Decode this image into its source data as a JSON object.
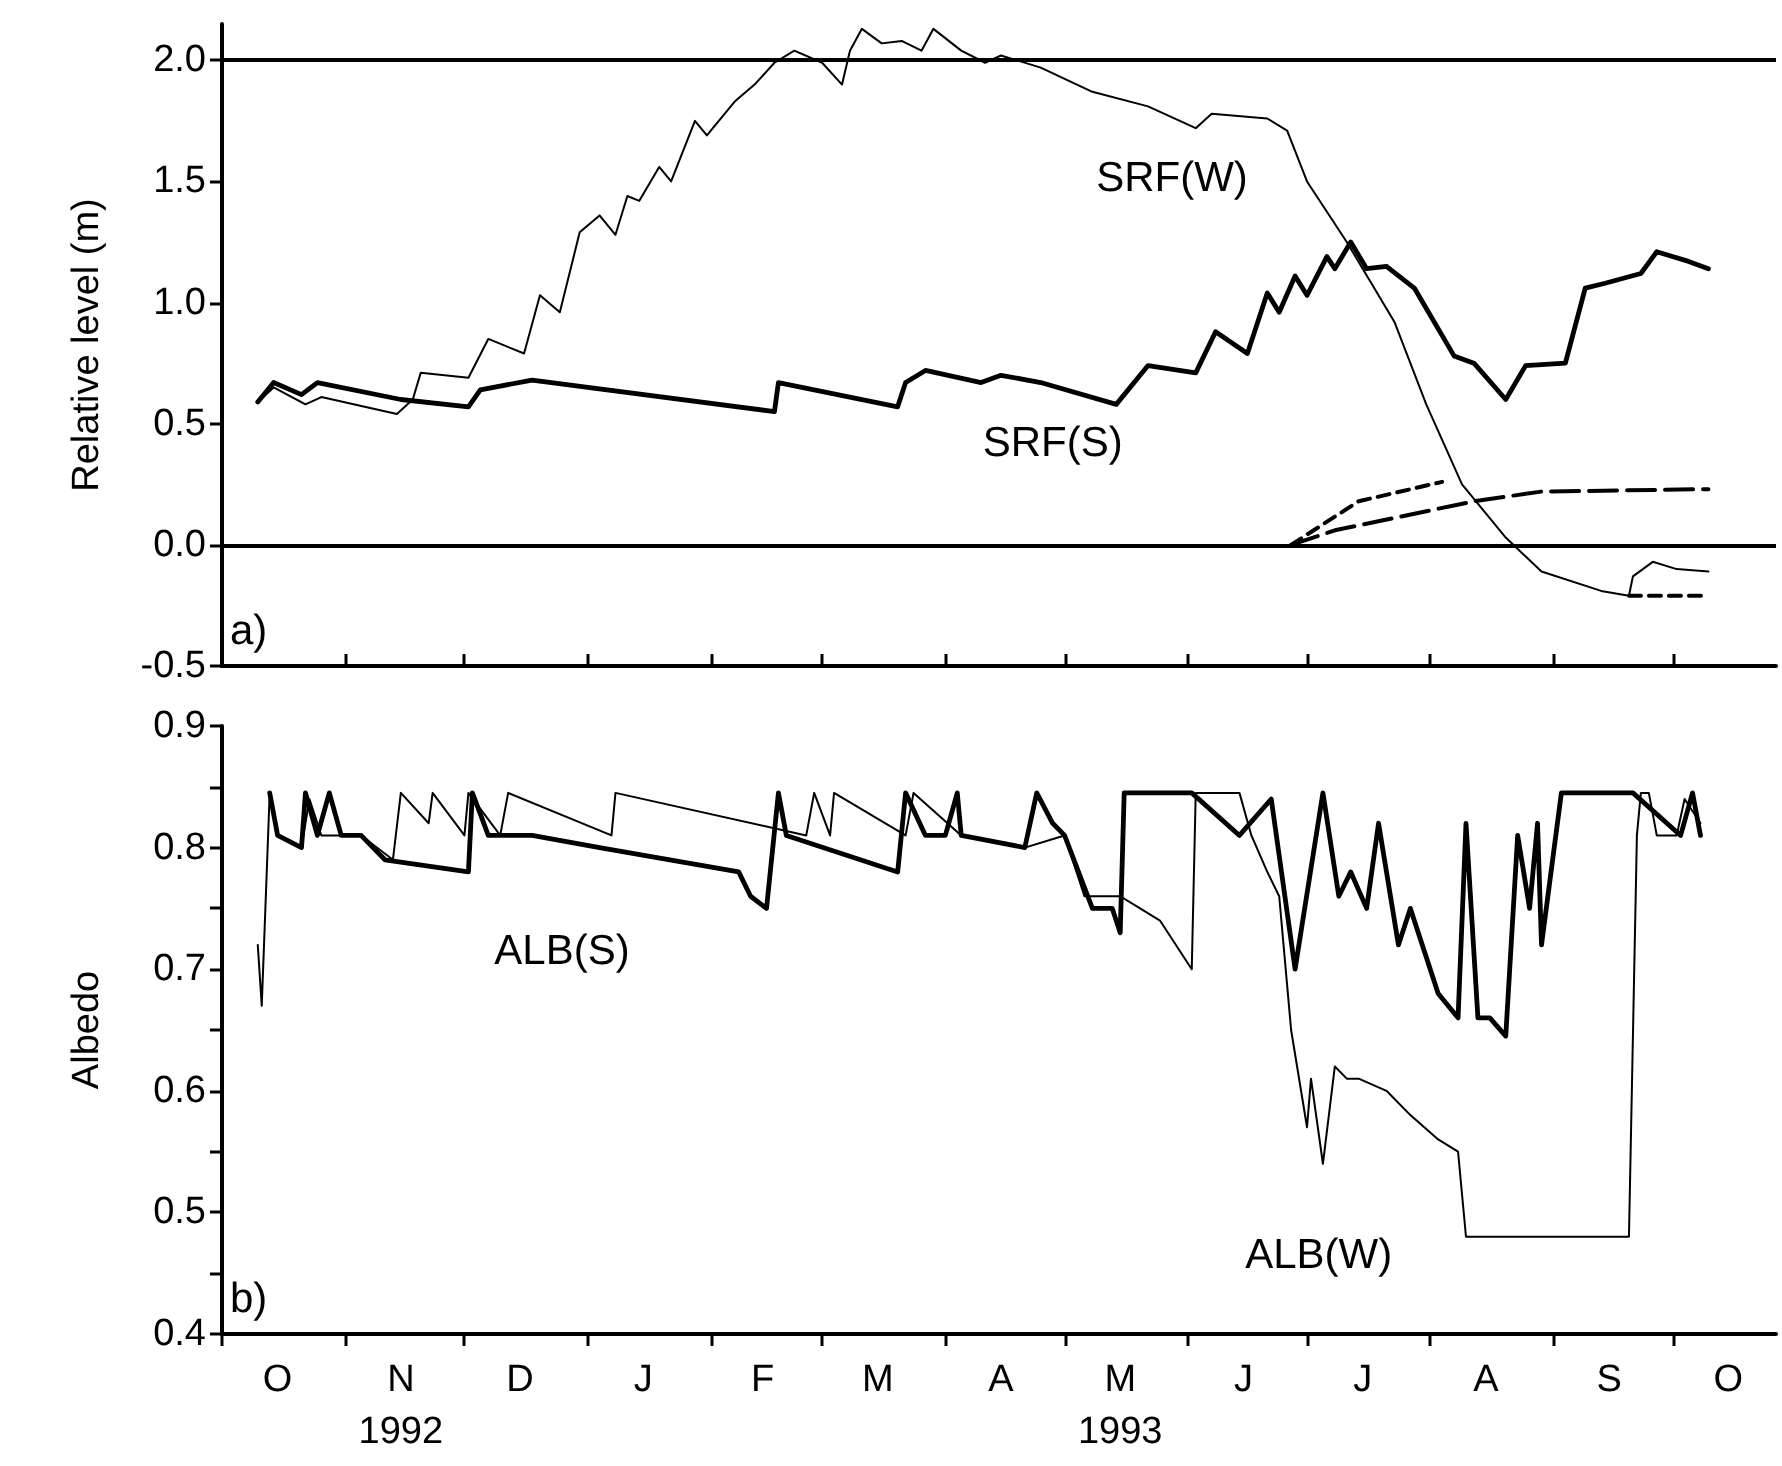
{
  "chart_data": [
    {
      "type": "line",
      "ylabel": "Relative level (m)",
      "xlim": [
        "1992-10-01",
        "1993-10-27"
      ],
      "ylim": [
        -0.5,
        2.15
      ],
      "yticks": [
        {
          "value": -0.5,
          "label": "-0.5"
        },
        {
          "value": 0,
          "label": "0.0"
        },
        {
          "value": 0.5,
          "label": "0.5"
        },
        {
          "value": 1,
          "label": "1.0"
        },
        {
          "value": 1.5,
          "label": "1.5"
        },
        {
          "value": 2,
          "label": "2.0"
        }
      ],
      "xticks": [
        {
          "value": "1992-10-01",
          "label": null
        },
        {
          "value": "1992-11-01",
          "label": null
        },
        {
          "value": "1992-12-01",
          "label": null
        },
        {
          "value": "1993-01-01",
          "label": null
        },
        {
          "value": "1993-02-01",
          "label": null
        },
        {
          "value": "1993-03-01",
          "label": null
        },
        {
          "value": "1993-04-01",
          "label": null
        },
        {
          "value": "1993-05-01",
          "label": null
        },
        {
          "value": "1993-06-01",
          "label": null
        },
        {
          "value": "1993-07-01",
          "label": null
        },
        {
          "value": "1993-08-01",
          "label": null
        },
        {
          "value": "1993-09-01",
          "label": null
        },
        {
          "value": "1993-10-01",
          "label": null
        }
      ],
      "tick_labels": "y",
      "grid": false,
      "ref_lines": [
        {
          "axis": "y",
          "value": 2,
          "color": "#000000"
        },
        {
          "axis": "y",
          "value": 0,
          "color": "#000000"
        }
      ],
      "annotations": [
        "a)"
      ],
      "series": [
        {
          "name": "SRF(W)",
          "color": "#000000",
          "line_style": "solid",
          "x": [
            "1992-10-10",
            "1992-10-14",
            "1992-10-22",
            "1992-10-26",
            "1992-11-14",
            "1992-11-18",
            "1992-11-20",
            "1992-12-02",
            "1992-12-07",
            "1992-12-16",
            "1992-12-20",
            "1992-12-25",
            "1992-12-30",
            "1993-01-04",
            "1993-01-08",
            "1993-01-11",
            "1993-01-14",
            "1993-01-19",
            "1993-01-22",
            "1993-01-28",
            "1993-01-31",
            "1993-02-07",
            "1993-02-12",
            "1993-02-17",
            "1993-02-22",
            "1993-03-01",
            "1993-03-06",
            "1993-03-08",
            "1993-03-11",
            "1993-03-16",
            "1993-03-21",
            "1993-03-26",
            "1993-03-29",
            "1993-04-05",
            "1993-04-11",
            "1993-04-15",
            "1993-04-25",
            "1993-05-08",
            "1993-05-22",
            "1993-06-03",
            "1993-06-07",
            "1993-06-21",
            "1993-06-26",
            "1993-07-01",
            "1993-07-11",
            "1993-07-23",
            "1993-07-31",
            "1993-08-09",
            "1993-08-20",
            "1993-08-29",
            "1993-09-13",
            "1993-09-20",
            "1993-09-21",
            "1993-09-26",
            "1993-10-02",
            "1993-10-10"
          ],
          "values": [
            0.59,
            0.65,
            0.58,
            0.61,
            0.54,
            0.6,
            0.71,
            0.69,
            0.85,
            0.79,
            1.03,
            0.96,
            1.29,
            1.36,
            1.28,
            1.44,
            1.42,
            1.56,
            1.5,
            1.75,
            1.69,
            1.83,
            1.9,
            1.99,
            2.04,
            1.99,
            1.9,
            2.04,
            2.13,
            2.07,
            2.08,
            2.04,
            2.13,
            2.04,
            1.99,
            2.02,
            1.97,
            1.87,
            1.81,
            1.72,
            1.78,
            1.76,
            1.71,
            1.5,
            1.25,
            0.92,
            0.58,
            0.25,
            0.03,
            -0.11,
            -0.19,
            -0.21,
            -0.13,
            -0.07,
            -0.1,
            -0.11
          ]
        },
        {
          "name": "SRF(S)",
          "color": "#000000",
          "line_style": "solid",
          "x": [
            "1992-10-10",
            "1992-10-14",
            "1992-10-21",
            "1992-10-25",
            "1992-11-15",
            "1992-12-02",
            "1992-12-05",
            "1992-12-18",
            "1993-02-17",
            "1993-02-18",
            "1993-03-20",
            "1993-03-22",
            "1993-03-27",
            "1993-04-10",
            "1993-04-15",
            "1993-04-25",
            "1993-05-14",
            "1993-05-22",
            "1993-06-03",
            "1993-06-08",
            "1993-06-16",
            "1993-06-21",
            "1993-06-24",
            "1993-06-28",
            "1993-07-01",
            "1993-07-06",
            "1993-07-08",
            "1993-07-12",
            "1993-07-16",
            "1993-07-21",
            "1993-07-28",
            "1993-08-07",
            "1993-08-12",
            "1993-08-20",
            "1993-08-25",
            "1993-09-04",
            "1993-09-09",
            "1993-09-14",
            "1993-09-23",
            "1993-09-27",
            "1993-10-05",
            "1993-10-10"
          ],
          "values": [
            0.59,
            0.67,
            0.62,
            0.67,
            0.6,
            0.57,
            0.64,
            0.68,
            0.55,
            0.67,
            0.57,
            0.67,
            0.72,
            0.67,
            0.7,
            0.67,
            0.58,
            0.74,
            0.71,
            0.88,
            0.79,
            1.04,
            0.96,
            1.11,
            1.03,
            1.19,
            1.14,
            1.25,
            1.14,
            1.15,
            1.06,
            0.78,
            0.75,
            0.6,
            0.74,
            0.75,
            1.06,
            1.08,
            1.12,
            1.21,
            1.17,
            1.14
          ]
        },
        {
          "color": "#000000",
          "line_style": "dashed",
          "x": [
            "1993-06-27",
            "1993-07-14",
            "1993-08-04",
            "1993-08-05",
            "1993-09-20",
            "1993-10-10"
          ],
          "values": [
            0.0,
            0.18,
            0.26,
            null,
            -0.21,
            -0.21
          ]
        },
        {
          "color": "#000000",
          "line_style": "dashed",
          "x": [
            "1993-06-27",
            "1993-07-08",
            "1993-08-12",
            "1993-08-29",
            "1993-10-10"
          ],
          "values": [
            0.0,
            0.06,
            0.18,
            0.22,
            0.23
          ]
        }
      ]
    },
    {
      "type": "line",
      "ylabel": "Albedo",
      "xlim": [
        "1992-10-01",
        "1993-10-27"
      ],
      "ylim": [
        0.4,
        0.9
      ],
      "yticks": [
        0.4,
        {
          "value": 0.45,
          "label": null
        },
        0.5,
        {
          "value": 0.55,
          "label": null
        },
        0.6,
        {
          "value": 0.65,
          "label": null
        },
        0.7,
        {
          "value": 0.75,
          "label": null
        },
        0.8,
        {
          "value": 0.85,
          "label": null
        },
        0.9
      ],
      "xticks": [
        {
          "value": "1992-10-01",
          "label": null
        },
        {
          "value": "1992-10-15",
          "label": "O"
        },
        {
          "value": "1992-11-01",
          "label": null
        },
        {
          "value": "1992-11-15",
          "label": "N\n1992"
        },
        {
          "value": "1992-12-01",
          "label": null
        },
        {
          "value": "1992-12-15",
          "label": "D"
        },
        {
          "value": "1993-01-01",
          "label": null
        },
        {
          "value": "1993-01-15",
          "label": "J"
        },
        {
          "value": "1993-02-01",
          "label": null
        },
        {
          "value": "1993-02-14",
          "label": "F"
        },
        {
          "value": "1993-03-01",
          "label": null
        },
        {
          "value": "1993-03-15",
          "label": "M"
        },
        {
          "value": "1993-04-01",
          "label": null
        },
        {
          "value": "1993-04-15",
          "label": "A"
        },
        {
          "value": "1993-05-01",
          "label": null
        },
        {
          "value": "1993-05-15",
          "label": "M\n1993"
        },
        {
          "value": "1993-06-01",
          "label": null
        },
        {
          "value": "1993-06-15",
          "label": "J"
        },
        {
          "value": "1993-07-01",
          "label": null
        },
        {
          "value": "1993-07-15",
          "label": "J"
        },
        {
          "value": "1993-08-01",
          "label": null
        },
        {
          "value": "1993-08-15",
          "label": "A"
        },
        {
          "value": "1993-09-01",
          "label": null
        },
        {
          "value": "1993-09-15",
          "label": "S"
        },
        {
          "value": "1993-10-01",
          "label": null
        },
        {
          "value": "1993-10-15",
          "label": "O"
        }
      ],
      "grid": false,
      "annotations": [
        "b)"
      ],
      "series": [
        {
          "name": "ALB(W)",
          "color": "#000000",
          "line_style": "solid",
          "x": [
            "1992-10-10",
            "1992-10-11",
            "1992-10-13",
            "1992-10-15",
            "1992-10-21",
            "1992-10-23",
            "1992-10-26",
            "1992-11-05",
            "1992-11-13",
            "1992-11-15",
            "1992-11-22",
            "1992-11-23",
            "1992-12-01",
            "1992-12-02",
            "1992-12-10",
            "1992-12-12",
            "1993-01-07",
            "1993-01-08",
            "1993-02-25",
            "1993-02-27",
            "1993-03-03",
            "1993-03-04",
            "1993-03-22",
            "1993-03-24",
            "1993-04-05",
            "1993-04-21",
            "1993-05-01",
            "1993-05-06",
            "1993-05-15",
            "1993-05-20",
            "1993-05-25",
            "1993-06-02",
            "1993-06-03",
            "1993-06-14",
            "1993-06-17",
            "1993-06-21",
            "1993-06-24",
            "1993-06-27",
            "1993-07-01",
            "1993-07-02",
            "1993-07-05",
            "1993-07-08",
            "1993-07-11",
            "1993-07-14",
            "1993-07-21",
            "1993-07-27",
            "1993-08-03",
            "1993-08-08",
            "1993-08-10",
            "1993-09-20",
            "1993-09-22",
            "1993-09-23",
            "1993-09-25",
            "1993-09-27",
            "1993-10-02",
            "1993-10-04",
            "1993-10-08"
          ],
          "values": [
            0.72,
            0.67,
            0.845,
            0.81,
            0.8,
            0.84,
            0.81,
            0.81,
            0.79,
            0.845,
            0.82,
            0.845,
            0.81,
            0.845,
            0.81,
            0.845,
            0.81,
            0.845,
            0.81,
            0.845,
            0.81,
            0.845,
            0.81,
            0.845,
            0.81,
            0.8,
            0.81,
            0.76,
            0.76,
            0.75,
            0.74,
            0.7,
            0.845,
            0.845,
            0.81,
            0.78,
            0.76,
            0.65,
            0.57,
            0.61,
            0.54,
            0.62,
            0.61,
            0.61,
            0.6,
            0.58,
            0.56,
            0.55,
            0.48,
            0.48,
            0.81,
            0.845,
            0.845,
            0.81,
            0.81,
            0.84,
            0.82
          ]
        },
        {
          "name": "ALB(S)",
          "color": "#000000",
          "line_style": "solid",
          "x": [
            "1992-10-13",
            "1992-10-15",
            "1992-10-21",
            "1992-10-22",
            "1992-10-25",
            "1992-10-28",
            "1992-10-31",
            "1992-11-05",
            "1992-11-11",
            "1992-12-02",
            "1992-12-03",
            "1992-12-07",
            "1992-12-18",
            "1993-01-04",
            "1993-02-08",
            "1993-02-11",
            "1993-02-15",
            "1993-02-18",
            "1993-02-20",
            "1993-03-20",
            "1993-03-22",
            "1993-03-27",
            "1993-04-01",
            "1993-04-04",
            "1993-04-05",
            "1993-04-21",
            "1993-04-24",
            "1993-04-28",
            "1993-05-01",
            "1993-05-08",
            "1993-05-13",
            "1993-05-15",
            "1993-05-16",
            "1993-06-02",
            "1993-06-14",
            "1993-06-22",
            "1993-06-28",
            "1993-07-05",
            "1993-07-09",
            "1993-07-12",
            "1993-07-16",
            "1993-07-19",
            "1993-07-24",
            "1993-07-27",
            "1993-08-03",
            "1993-08-08",
            "1993-08-10",
            "1993-08-13",
            "1993-08-16",
            "1993-08-20",
            "1993-08-23",
            "1993-08-26",
            "1993-08-28",
            "1993-08-29",
            "1993-09-03",
            "1993-09-21",
            "1993-10-03",
            "1993-10-06",
            "1993-10-08"
          ],
          "values": [
            0.845,
            0.81,
            0.8,
            0.845,
            0.81,
            0.845,
            0.81,
            0.81,
            0.79,
            0.78,
            0.845,
            0.81,
            0.81,
            0.8,
            0.78,
            0.76,
            0.75,
            0.845,
            0.81,
            0.78,
            0.845,
            0.81,
            0.81,
            0.845,
            0.81,
            0.8,
            0.845,
            0.82,
            0.81,
            0.75,
            0.75,
            0.73,
            0.845,
            0.845,
            0.81,
            0.84,
            0.7,
            0.845,
            0.76,
            0.78,
            0.75,
            0.82,
            0.72,
            0.75,
            0.68,
            0.66,
            0.82,
            0.66,
            0.66,
            0.645,
            0.81,
            0.75,
            0.82,
            0.72,
            0.845,
            0.845,
            0.81,
            0.845,
            0.81
          ]
        }
      ]
    }
  ]
}
